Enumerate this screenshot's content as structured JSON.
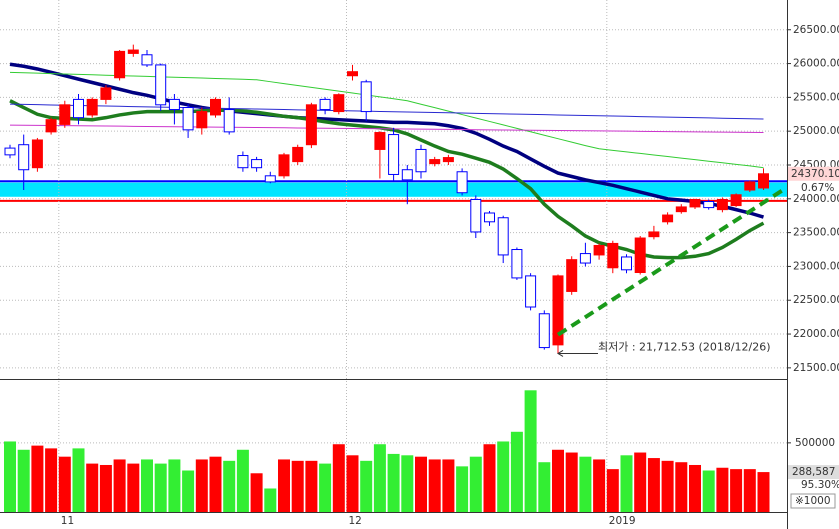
{
  "chart_data": {
    "type": "candlestick",
    "categories": [
      null,
      null,
      null,
      null,
      "11",
      null,
      null,
      null,
      null,
      null,
      null,
      null,
      null,
      null,
      null,
      null,
      null,
      null,
      null,
      null,
      null,
      null,
      null,
      null,
      null,
      "12",
      null,
      null,
      null,
      null,
      null,
      null,
      null,
      null,
      null,
      null,
      null,
      null,
      null,
      null,
      null,
      null,
      null,
      null,
      "2019",
      null,
      null,
      null,
      null,
      null,
      null,
      null,
      null,
      null,
      null,
      null
    ],
    "candles": {
      "open": [
        24750,
        24800,
        24460,
        24990,
        25100,
        25470,
        25240,
        25470,
        25790,
        26150,
        26130,
        25980,
        25470,
        25350,
        25050,
        25240,
        25320,
        24640,
        24580,
        24340,
        24340,
        24550,
        24800,
        25470,
        25290,
        25820,
        25730,
        24730,
        24950,
        24430,
        24730,
        24520,
        24550,
        24400,
        23990,
        23790,
        23720,
        23250,
        22860,
        22300,
        21840,
        22630,
        23190,
        23170,
        22980,
        23140,
        22910,
        23440,
        23660,
        23810,
        23880,
        23960,
        23840,
        23900,
        24130,
        24160
      ],
      "high": [
        24800,
        24950,
        24900,
        25200,
        25450,
        25550,
        25500,
        25680,
        26200,
        26280,
        26200,
        26000,
        25550,
        25400,
        25350,
        25500,
        25500,
        24700,
        24620,
        24400,
        24680,
        24800,
        25420,
        25500,
        25560,
        25980,
        25760,
        25000,
        25050,
        24500,
        24800,
        24620,
        24650,
        24450,
        24050,
        23820,
        23750,
        23280,
        22900,
        22350,
        22880,
        23150,
        23350,
        23340,
        23380,
        23180,
        23450,
        23600,
        23800,
        23920,
        24000,
        23990,
        24020,
        24080,
        24270,
        24450
      ],
      "low": [
        24600,
        24130,
        24400,
        24950,
        25050,
        25100,
        25200,
        25400,
        25750,
        26100,
        25950,
        25300,
        25100,
        24900,
        24950,
        25200,
        24950,
        24400,
        24400,
        24230,
        24300,
        24500,
        24750,
        25250,
        25250,
        25750,
        25150,
        24300,
        24250,
        23920,
        24300,
        24480,
        24500,
        24050,
        23420,
        23600,
        23050,
        22800,
        22350,
        21770,
        21712.53,
        22580,
        23000,
        23100,
        22900,
        22900,
        22880,
        23400,
        23620,
        23780,
        23850,
        23840,
        23800,
        23880,
        24100,
        24130
      ],
      "close": [
        24650,
        24430,
        24870,
        25170,
        25390,
        25200,
        25470,
        25640,
        26180,
        26200,
        25980,
        25390,
        25320,
        25020,
        25290,
        25470,
        24990,
        24460,
        24460,
        24250,
        24650,
        24760,
        25390,
        25320,
        25540,
        25880,
        25290,
        24980,
        24360,
        24280,
        24400,
        24580,
        24610,
        24090,
        23510,
        23660,
        23170,
        22830,
        22400,
        21800,
        22860,
        23100,
        23050,
        23310,
        23340,
        22950,
        23420,
        23510,
        23760,
        23880,
        23990,
        23870,
        23990,
        24060,
        24250,
        24370.1
      ],
      "up_color": "#ff0000",
      "down_color": "#0000ff"
    },
    "ylim": [
      21350,
      26940
    ],
    "yticks": [
      {
        "value": 26500,
        "label": "26500.00"
      },
      {
        "value": 26000,
        "label": "26000.00"
      },
      {
        "value": 25500,
        "label": "25500.00"
      },
      {
        "value": 25000,
        "label": "25000.00"
      },
      {
        "value": 24500,
        "label": "24500.00"
      },
      {
        "value": 24000,
        "label": "24000.00"
      },
      {
        "value": 23500,
        "label": "23500.00"
      },
      {
        "value": 23000,
        "label": "23000.00"
      },
      {
        "value": 22500,
        "label": "22500.00"
      },
      {
        "value": 22000,
        "label": "22000.00"
      },
      {
        "value": 21500,
        "label": "21500.00"
      }
    ],
    "moving_averages": [
      {
        "color": "#000080",
        "values": [
          25990,
          25960,
          25920,
          25870,
          25820,
          25770,
          25720,
          25670,
          25620,
          25570,
          25530,
          25480,
          25430,
          25390,
          25350,
          25320,
          25300,
          25280,
          25260,
          25240,
          25220,
          25200,
          25190,
          25180,
          25170,
          25160,
          25150,
          25140,
          25130,
          25130,
          25120,
          25110,
          25080,
          25040,
          24970,
          24880,
          24780,
          24700,
          24590,
          24480,
          24380,
          24330,
          24280,
          24240,
          24200,
          24150,
          24100,
          24050,
          24000,
          23980,
          23960,
          23930,
          23890,
          23840,
          23790,
          23730
        ]
      },
      {
        "color": "#1e7d1e",
        "values": [
          25450,
          25350,
          25250,
          25200,
          25190,
          25180,
          25170,
          25200,
          25240,
          25270,
          25290,
          25290,
          25290,
          25290,
          25300,
          25310,
          25310,
          25300,
          25280,
          25250,
          25220,
          25200,
          25170,
          25140,
          25110,
          25090,
          25070,
          25050,
          25020,
          24960,
          24870,
          24780,
          24700,
          24660,
          24600,
          24540,
          24440,
          24300,
          24150,
          23920,
          23740,
          23600,
          23450,
          23350,
          23300,
          23250,
          23180,
          23140,
          23130,
          23130,
          23150,
          23190,
          23280,
          23400,
          23530,
          23640
        ]
      },
      {
        "color": "#33cc33",
        "values": [
          25870,
          25864,
          25858,
          25852,
          25846,
          25840,
          25834,
          25828,
          25822,
          25816,
          25810,
          25804,
          25798,
          25792,
          25786,
          25780,
          25774,
          25768,
          25760,
          25732,
          25704,
          25676,
          25648,
          25620,
          25592,
          25564,
          25536,
          25508,
          25480,
          25450,
          25399,
          25348,
          25297,
          25246,
          25195,
          25144,
          25093,
          25042,
          24991,
          24940,
          24889,
          24838,
          24787,
          24740,
          24717,
          24694,
          24671,
          24648,
          24625,
          24602,
          24579,
          24556,
          24533,
          24510,
          24487,
          24460
        ]
      },
      {
        "color": "#2a2ad0",
        "values": [
          25400,
          25396,
          25392,
          25388,
          25384,
          25380,
          25376,
          25372,
          25368,
          25364,
          25360,
          25356,
          25352,
          25348,
          25344,
          25340,
          25336,
          25332,
          25328,
          25324,
          25320,
          25316,
          25312,
          25308,
          25304,
          25300,
          25296,
          25292,
          25288,
          25284,
          25280,
          25276,
          25272,
          25268,
          25264,
          25260,
          25256,
          25252,
          25248,
          25244,
          25240,
          25236,
          25232,
          25228,
          25224,
          25220,
          25216,
          25212,
          25208,
          25204,
          25200,
          25196,
          25192,
          25188,
          25184,
          25180
        ]
      },
      {
        "color": "#cc33cc",
        "values": [
          25090,
          25088,
          25086,
          25084,
          25082,
          25080,
          25078,
          25076,
          25074,
          25072,
          25070,
          25068,
          25066,
          25064,
          25062,
          25060,
          25058,
          25056,
          25054,
          25052,
          25050,
          25048,
          25046,
          25044,
          25042,
          25040,
          25038,
          25036,
          25034,
          25032,
          25030,
          25028,
          25026,
          25024,
          25022,
          25020,
          25018,
          25016,
          25014,
          25012,
          25010,
          25008,
          25006,
          25004,
          25002,
          25000,
          24998,
          24996,
          24994,
          24992,
          24990,
          24988,
          24986,
          24984,
          24982,
          24980
        ]
      }
    ],
    "zones": [
      {
        "from": 24030,
        "to": 24240,
        "color": "#00e5ff"
      }
    ],
    "hlines": [
      {
        "value": 24260,
        "color": "#0000ff"
      },
      {
        "value": 23970,
        "color": "#ff0000"
      }
    ],
    "trendline": {
      "color": "#1a9a1a",
      "points": [
        {
          "index": 40,
          "value": 21990
        },
        {
          "index": 56.5,
          "value": 24140
        }
      ]
    },
    "low_label": {
      "text": "최저가 : 21,712.53 (2018/12/26)",
      "index": 40,
      "value": 21712.53
    },
    "last_price": {
      "label": "24370.10",
      "change": "0.67%"
    },
    "volume": {
      "values": [
        510000,
        450000,
        480000,
        460000,
        400000,
        460000,
        350000,
        340000,
        380000,
        350000,
        380000,
        350000,
        380000,
        300000,
        380000,
        400000,
        370000,
        450000,
        280000,
        170000,
        380000,
        370000,
        370000,
        350000,
        490000,
        410000,
        370000,
        490000,
        420000,
        410000,
        400000,
        380000,
        380000,
        330000,
        400000,
        490000,
        510000,
        580000,
        880000,
        360000,
        450000,
        430000,
        400000,
        380000,
        310000,
        410000,
        430000,
        390000,
        370000,
        360000,
        340000,
        300000,
        320000,
        310000,
        310000,
        288587
      ],
      "up_color": "#ff0000",
      "down_color": "#33ee33",
      "ylim": [
        0,
        940000
      ],
      "yticks": [
        500000
      ],
      "last_label": "288,587",
      "ratio": "95.30%",
      "unit": "※1000"
    }
  }
}
